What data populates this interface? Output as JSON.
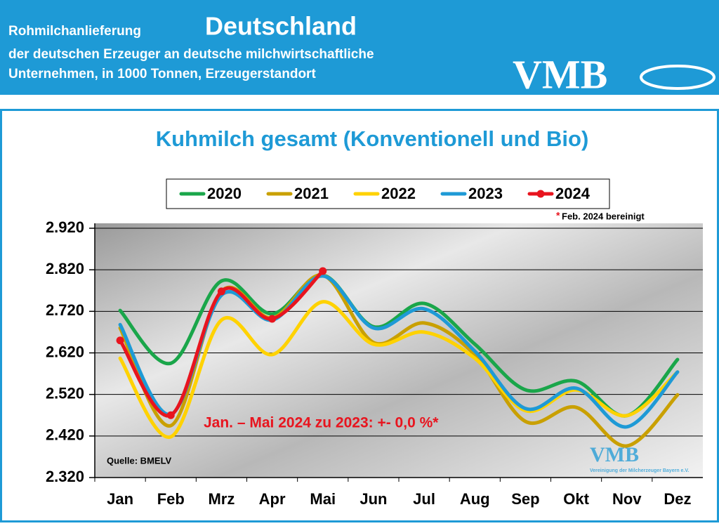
{
  "header": {
    "prefix": "Rohmilchanlieferung",
    "title": "Deutschland",
    "line1": "der deutschen Erzeuger an deutsche milchwirtschaftliche",
    "line2": "Unternehmen, in 1000 Tonnen, Erzeugerstandort",
    "logo": "VMB"
  },
  "chart_data": {
    "type": "line",
    "title": "Kuhmilch gesamt (Konventionell und Bio)",
    "categories": [
      "Jan",
      "Feb",
      "Mrz",
      "Apr",
      "Mai",
      "Jun",
      "Jul",
      "Aug",
      "Sep",
      "Okt",
      "Nov",
      "Dez"
    ],
    "series": [
      {
        "name": "2020",
        "color": "#1aa64a",
        "values": [
          2722,
          2595,
          2793,
          2714,
          2807,
          2683,
          2739,
          2641,
          2531,
          2552,
          2469,
          2604
        ]
      },
      {
        "name": "2021",
        "color": "#c9a000",
        "values": [
          2680,
          2445,
          2768,
          2704,
          2807,
          2645,
          2692,
          2616,
          2455,
          2489,
          2396,
          2519
        ]
      },
      {
        "name": "2022",
        "color": "#ffd200",
        "values": [
          2607,
          2418,
          2699,
          2616,
          2743,
          2641,
          2670,
          2607,
          2481,
          2531,
          2469,
          2574
        ]
      },
      {
        "name": "2023",
        "color": "#1e9ad6",
        "values": [
          2688,
          2472,
          2759,
          2699,
          2805,
          2680,
          2726,
          2624,
          2486,
          2535,
          2442,
          2574
        ]
      },
      {
        "name": "2024",
        "color": "#e8141e",
        "values": [
          2650,
          2470,
          2768,
          2702,
          2817,
          null,
          null,
          null,
          null,
          null,
          null,
          null
        ],
        "markers": true
      }
    ],
    "ylim": [
      2320,
      2920
    ],
    "yticks": [
      {
        "value": 2320,
        "label": "2.320"
      },
      {
        "value": 2420,
        "label": "2.420"
      },
      {
        "value": 2520,
        "label": "2.520"
      },
      {
        "value": 2620,
        "label": "2.620"
      },
      {
        "value": 2720,
        "label": "2.720"
      },
      {
        "value": 2820,
        "label": "2.820"
      },
      {
        "value": 2920,
        "label": "2.920"
      }
    ],
    "grid": true,
    "note_marker": "*",
    "note": "Feb. 2024 bereinigt",
    "annotation": "Jan. – Mai 2024 zu 2023: +- 0,0 %*",
    "source": "Quelle: BMELV",
    "watermark": "VMB",
    "watermark_sub": "Vereinigung der Milcherzeuger Bayern e.V."
  }
}
